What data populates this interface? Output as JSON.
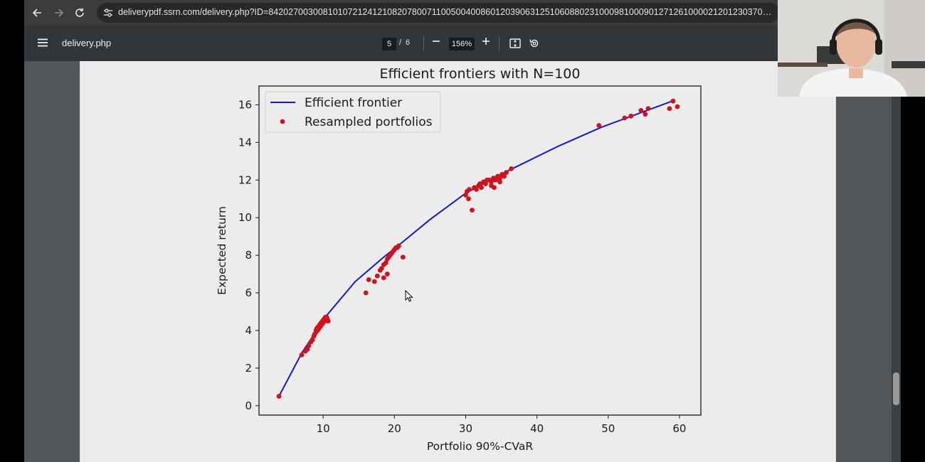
{
  "browser": {
    "url": "deliverypdf.ssrn.com/delivery.php?ID=842027003008101072124121082078007110050040086012039063125106088023100098100090127126100002120123037033111103093122...",
    "icons": [
      "back-arrow-icon",
      "forward-arrow-icon",
      "reload-icon",
      "site-info-icon"
    ]
  },
  "pdf_toolbar": {
    "title": "delivery.php",
    "page_current": "5",
    "page_separator": "/",
    "page_total": "6",
    "zoom": "156%",
    "icons": [
      "menu-icon",
      "zoom-out-icon",
      "zoom-in-icon",
      "fit-to-page-icon",
      "rotate-icon"
    ]
  },
  "colors": {
    "frontier_line": "#1515d6",
    "resampled_points": "#d0121c",
    "page_background": "#ececec",
    "toolbar": "#323639"
  },
  "chart_data": {
    "type": "scatter",
    "title": "Efficient frontiers with N=100",
    "xlabel": "Portfolio 90%-CVaR",
    "ylabel": "Expected return",
    "xlim": [
      1,
      63
    ],
    "ylim": [
      -0.5,
      17
    ],
    "xticks": [
      10,
      20,
      30,
      40,
      50,
      60
    ],
    "yticks": [
      0,
      2,
      4,
      6,
      8,
      10,
      12,
      14,
      16
    ],
    "grid": false,
    "legend_position": "top-left",
    "series": [
      {
        "name": "Efficient frontier",
        "kind": "line",
        "x": [
          3.8,
          7.0,
          10.5,
          14.5,
          18.5,
          20.5,
          25.0,
          30.0,
          32.5,
          36.0,
          43.0,
          49.0,
          54.0,
          59.0
        ],
        "y": [
          0.5,
          2.8,
          4.8,
          6.6,
          7.9,
          8.5,
          9.9,
          11.3,
          11.8,
          12.5,
          13.8,
          14.8,
          15.5,
          16.2
        ]
      },
      {
        "name": "Resampled portfolios",
        "kind": "scatter",
        "x": [
          3.8,
          7.0,
          7.5,
          7.8,
          8.0,
          8.3,
          8.5,
          8.7,
          8.8,
          9.0,
          9.0,
          9.1,
          9.2,
          9.3,
          9.4,
          9.5,
          9.6,
          9.7,
          9.8,
          9.9,
          10.0,
          10.1,
          10.2,
          10.3,
          10.4,
          10.5,
          10.6,
          10.7,
          16.0,
          16.4,
          17.2,
          17.6,
          18.0,
          18.5,
          19.0,
          18.2,
          18.5,
          18.8,
          19.0,
          19.2,
          19.4,
          19.6,
          19.8,
          20.0,
          20.2,
          20.4,
          20.6,
          21.2,
          30.0,
          30.2,
          30.4,
          30.5,
          30.9,
          31.2,
          31.5,
          31.8,
          32.0,
          32.2,
          32.5,
          32.8,
          33.0,
          33.3,
          33.6,
          33.9,
          34.2,
          34.5,
          34.8,
          35.1,
          35.4,
          35.7,
          36.4,
          33.6,
          34.0,
          34.8,
          48.7,
          52.3,
          53.2,
          54.6,
          55.2,
          55.6,
          58.6,
          59.1,
          59.7
        ],
        "y": [
          0.5,
          2.7,
          2.9,
          3.0,
          3.2,
          3.4,
          3.5,
          3.7,
          3.8,
          3.9,
          4.0,
          4.1,
          4.0,
          4.2,
          4.1,
          4.3,
          4.2,
          4.4,
          4.3,
          4.5,
          4.4,
          4.6,
          4.5,
          4.7,
          4.6,
          4.7,
          4.6,
          4.5,
          6.0,
          6.7,
          6.6,
          6.9,
          7.2,
          6.8,
          7.0,
          7.3,
          7.5,
          7.6,
          7.8,
          7.9,
          8.0,
          8.1,
          8.2,
          8.3,
          8.4,
          8.4,
          8.5,
          7.9,
          11.2,
          11.4,
          11.0,
          11.5,
          10.4,
          11.6,
          11.5,
          11.7,
          11.8,
          11.6,
          11.9,
          11.8,
          12.0,
          12.0,
          11.7,
          12.1,
          12.0,
          12.2,
          12.1,
          12.3,
          12.2,
          12.4,
          12.6,
          11.9,
          11.6,
          11.9,
          14.9,
          15.3,
          15.4,
          15.7,
          15.5,
          15.8,
          15.8,
          16.2,
          15.9
        ]
      }
    ]
  }
}
